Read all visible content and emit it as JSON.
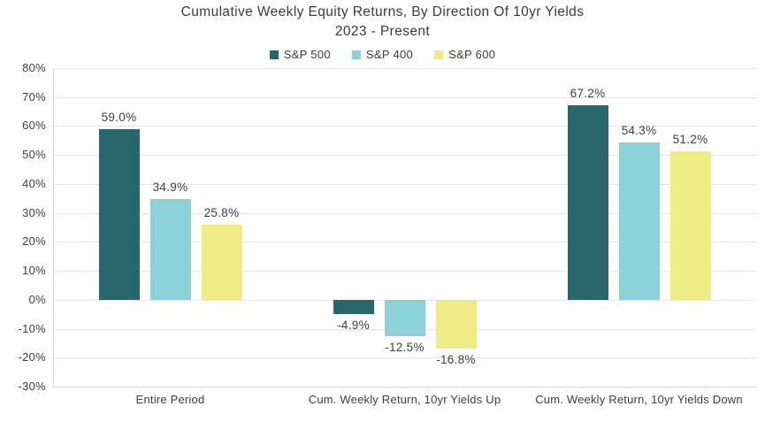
{
  "title": {
    "line1": "Cumulative Weekly Equity Returns, By Direction Of 10yr Yields",
    "line2": "2023 - Present"
  },
  "legend": [
    {
      "label": "S&P 500",
      "color": "#2a676d"
    },
    {
      "label": "S&P 400",
      "color": "#8ad2d8"
    },
    {
      "label": "S&P 600",
      "color": "#eeec85"
    }
  ],
  "chart_data": {
    "type": "bar",
    "title": "Cumulative Weekly Equity Returns, By Direction Of 10yr Yields 2023 - Present",
    "categories": [
      "Entire Period",
      "Cum. Weekly Return, 10yr Yields Up",
      "Cum. Weekly Return, 10yr Yields Down"
    ],
    "series": [
      {
        "name": "S&P 500",
        "color": "#2a676d",
        "values": [
          59.0,
          -4.9,
          67.2
        ],
        "labels": [
          "59.0%",
          "-4.9%",
          "67.2%"
        ]
      },
      {
        "name": "S&P 400",
        "color": "#8ad2d8",
        "values": [
          34.9,
          -12.5,
          54.3
        ],
        "labels": [
          "34.9%",
          "-12.5%",
          "54.3%"
        ]
      },
      {
        "name": "S&P 600",
        "color": "#eeec85",
        "values": [
          25.8,
          -16.8,
          51.2
        ],
        "labels": [
          "25.8%",
          "-16.8%",
          "51.2%"
        ]
      }
    ],
    "xlabel": "",
    "ylabel": "",
    "ylim": [
      -30,
      80
    ],
    "yticks": [
      80,
      70,
      60,
      50,
      40,
      30,
      20,
      10,
      0,
      -10,
      -20,
      -30
    ],
    "ytick_labels": [
      "80%",
      "70%",
      "60%",
      "50%",
      "40%",
      "30%",
      "20%",
      "10%",
      "0%",
      "-10%",
      "-20%",
      "-30%"
    ],
    "grid": true,
    "legend_position": "top"
  }
}
